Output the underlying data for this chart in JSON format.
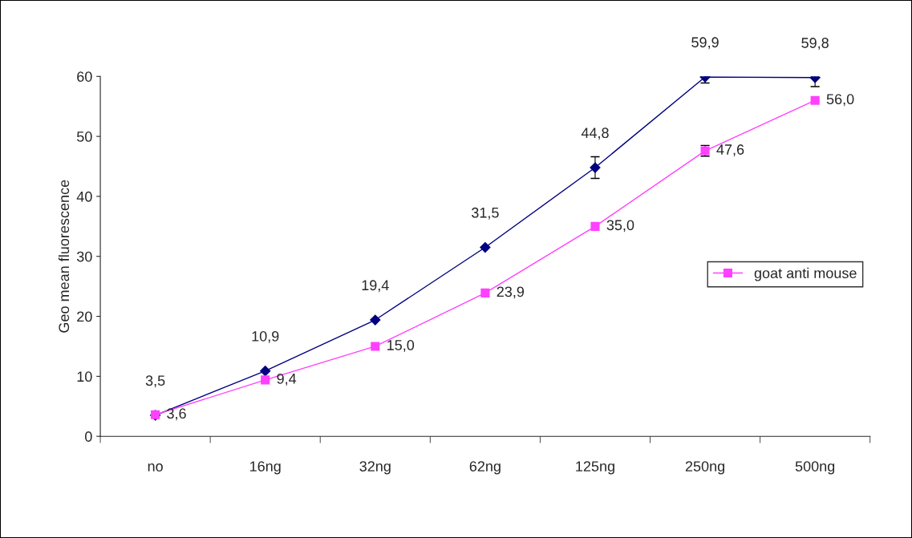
{
  "chart_data": {
    "type": "line",
    "ylabel": "Geo mean fluorescence",
    "categories": [
      "no",
      "16ng",
      "32ng",
      "62ng",
      "125ng",
      "250ng",
      "500ng"
    ],
    "series": [
      {
        "color": "#000080",
        "marker": "diamond",
        "values": [
          3.5,
          10.9,
          19.4,
          31.5,
          44.8,
          59.9,
          59.8
        ],
        "errors": [
          null,
          null,
          null,
          null,
          1.8,
          1.0,
          1.5
        ],
        "value_labels": [
          "3,5",
          "10,9",
          "19,4",
          "31,5",
          "44,8",
          "59,9",
          "59,8"
        ]
      },
      {
        "name": "goat anti mouse",
        "color": "#ff40ff",
        "marker": "square",
        "values": [
          3.6,
          9.4,
          15.0,
          23.9,
          35.0,
          47.6,
          56.0
        ],
        "errors": [
          null,
          null,
          null,
          null,
          null,
          0.9,
          null
        ],
        "value_labels": [
          "3,6",
          "9,4",
          "15,0",
          "23,9",
          "35,0",
          "47,6",
          "56,0"
        ]
      }
    ],
    "ylim": [
      0,
      60
    ],
    "yticks": [
      0,
      10,
      20,
      30,
      40,
      50,
      60
    ],
    "grid": false,
    "legend": "right",
    "line_style": "solid"
  }
}
